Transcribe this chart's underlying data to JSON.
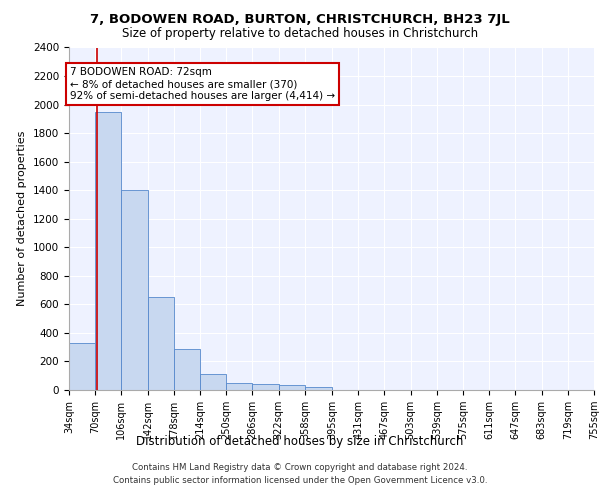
{
  "title_line1": "7, BODOWEN ROAD, BURTON, CHRISTCHURCH, BH23 7JL",
  "title_line2": "Size of property relative to detached houses in Christchurch",
  "xlabel": "Distribution of detached houses by size in Christchurch",
  "ylabel": "Number of detached properties",
  "footnote1": "Contains HM Land Registry data © Crown copyright and database right 2024.",
  "footnote2": "Contains public sector information licensed under the Open Government Licence v3.0.",
  "annotation_title": "7 BODOWEN ROAD: 72sqm",
  "annotation_line1": "← 8% of detached houses are smaller (370)",
  "annotation_line2": "92% of semi-detached houses are larger (4,414) →",
  "bin_edges": [
    34,
    70,
    106,
    142,
    178,
    214,
    250,
    286,
    322,
    358,
    395,
    431,
    467,
    503,
    539,
    575,
    611,
    647,
    683,
    719,
    755
  ],
  "bar_heights": [
    330,
    1950,
    1400,
    650,
    290,
    110,
    50,
    45,
    35,
    22,
    0,
    0,
    0,
    0,
    0,
    0,
    0,
    0,
    0,
    0
  ],
  "bar_color": "#c8d8f0",
  "bar_edge_color": "#5588cc",
  "background_color": "#eef2ff",
  "grid_color": "#ffffff",
  "vline_x": 72,
  "vline_color": "#cc0000",
  "ylim": [
    0,
    2400
  ],
  "yticks": [
    0,
    200,
    400,
    600,
    800,
    1000,
    1200,
    1400,
    1600,
    1800,
    2000,
    2200,
    2400
  ],
  "annotation_box_color": "#ffffff",
  "annotation_box_edge": "#cc0000"
}
